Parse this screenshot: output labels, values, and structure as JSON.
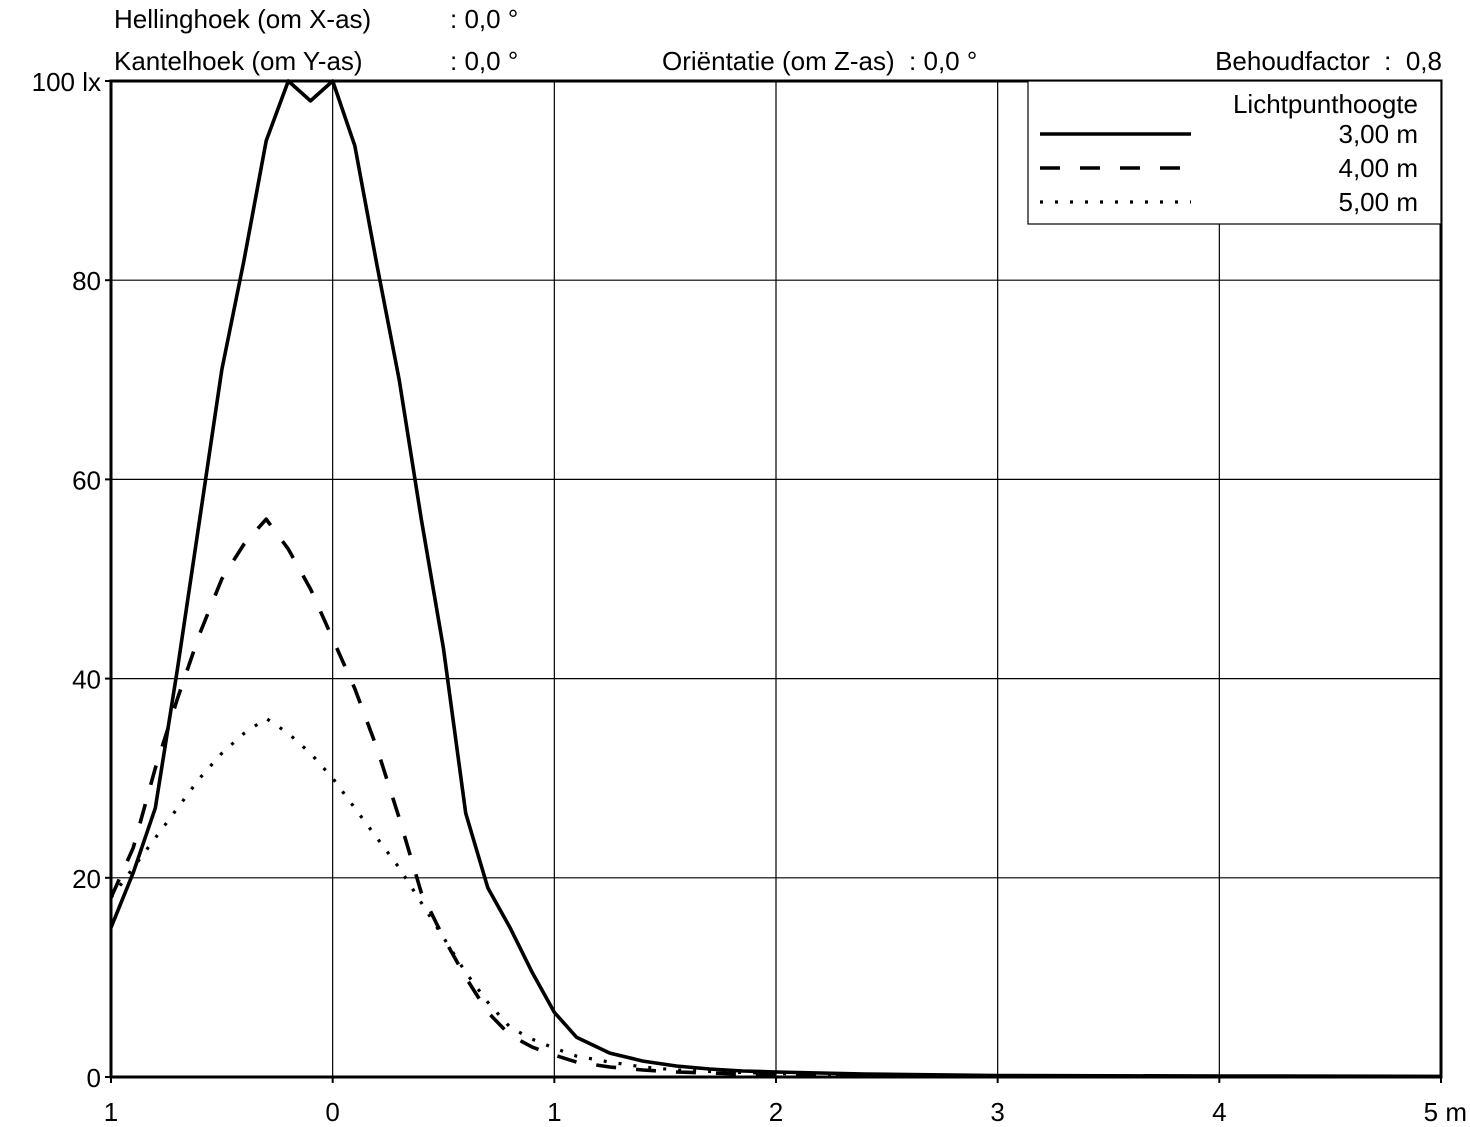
{
  "header": {
    "helling_label": "Hellinghoek (om X-as)",
    "helling_value": ": 0,0 °",
    "kantel_label": "Kantelhoek (om Y-as)",
    "kantel_value": ": 0,0 °",
    "orientatie": "Oriëntatie (om Z-as)  : 0,0 °",
    "behoudfactor": "Behoudfactor  :  0,8"
  },
  "chart_data": {
    "type": "line",
    "xlim": [
      -1,
      5
    ],
    "ylim": [
      0,
      100
    ],
    "grid": true,
    "legend_placement": "top-right",
    "x_ticks": [
      {
        "value": -1,
        "label": "1"
      },
      {
        "value": 0,
        "label": "0"
      },
      {
        "value": 1,
        "label": "1"
      },
      {
        "value": 2,
        "label": "2"
      },
      {
        "value": 3,
        "label": "3"
      },
      {
        "value": 4,
        "label": "4"
      },
      {
        "value": 5,
        "label": "5 m"
      }
    ],
    "y_ticks": [
      {
        "value": 0,
        "label": "0"
      },
      {
        "value": 20,
        "label": "20"
      },
      {
        "value": 40,
        "label": "40"
      },
      {
        "value": 60,
        "label": "60"
      },
      {
        "value": 80,
        "label": "80"
      },
      {
        "value": 100,
        "label": "100 lx"
      }
    ],
    "legend_title": "Lichtpunthoogte",
    "x": [
      -1.0,
      -0.9,
      -0.8,
      -0.7,
      -0.6,
      -0.5,
      -0.4,
      -0.3,
      -0.2,
      -0.1,
      0.0,
      0.1,
      0.2,
      0.3,
      0.4,
      0.5,
      0.6,
      0.7,
      0.8,
      0.9,
      1.0,
      1.1,
      1.25,
      1.4,
      1.55,
      1.7,
      1.85,
      2.0,
      2.2,
      2.4,
      2.6,
      2.8,
      3.0,
      3.5,
      4.0,
      4.5,
      5.0
    ],
    "series": [
      {
        "name": "3,00 m",
        "style": "solid",
        "values": [
          15.0,
          20.5,
          27.0,
          41.0,
          56.0,
          71.0,
          82.0,
          94.0,
          100.0,
          98.0,
          100.0,
          93.5,
          81.5,
          70.0,
          56.0,
          43.0,
          26.5,
          19.0,
          15.0,
          10.5,
          6.5,
          4.0,
          2.4,
          1.6,
          1.1,
          0.8,
          0.6,
          0.5,
          0.4,
          0.3,
          0.25,
          0.2,
          0.15,
          0.12,
          0.1,
          0.08,
          0.06
        ]
      },
      {
        "name": "4,00 m",
        "style": "dashed",
        "values": [
          18.0,
          23.0,
          31.0,
          38.0,
          44.5,
          50.0,
          53.5,
          56.0,
          53.0,
          49.0,
          44.0,
          39.0,
          33.0,
          26.0,
          18.5,
          14.0,
          10.0,
          6.5,
          4.2,
          3.0,
          2.2,
          1.5,
          1.0,
          0.7,
          0.5,
          0.4,
          0.3,
          0.25,
          0.2,
          0.15,
          0.12,
          0.1,
          0.08,
          0.06,
          0.05,
          0.04,
          0.03
        ]
      },
      {
        "name": "5,00 m",
        "style": "dotted",
        "values": [
          18.0,
          21.0,
          24.0,
          27.0,
          30.0,
          32.5,
          34.5,
          36.0,
          34.5,
          32.5,
          30.0,
          27.0,
          24.0,
          21.0,
          17.5,
          14.0,
          10.5,
          7.5,
          5.0,
          3.8,
          2.9,
          2.1,
          1.5,
          1.0,
          0.7,
          0.55,
          0.45,
          0.35,
          0.3,
          0.25,
          0.2,
          0.15,
          0.12,
          0.1,
          0.08,
          0.06,
          0.05
        ]
      }
    ]
  }
}
